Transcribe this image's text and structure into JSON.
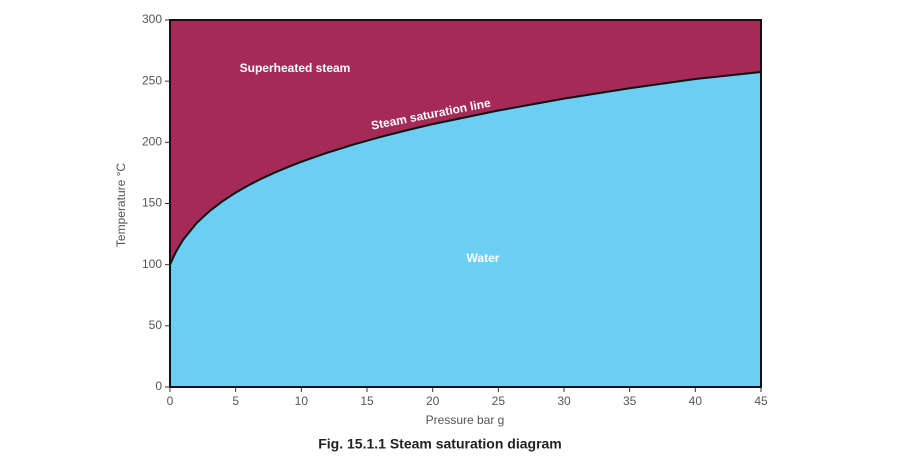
{
  "chart_data": {
    "type": "area",
    "title": "Fig. 15.1.1 Steam saturation diagram",
    "x_label": "Pressure bar g",
    "y_label": "Temperature °C",
    "x": [
      0,
      0.25,
      0.5,
      1,
      2,
      3,
      4,
      5,
      6,
      7,
      8,
      9,
      10,
      12,
      14,
      16,
      18,
      20,
      25,
      30,
      35,
      40,
      45
    ],
    "series": [
      {
        "name": "Steam saturation line",
        "color": "#111111",
        "values": [
          100,
          106,
          111.4,
          120.4,
          133.7,
          143.7,
          151.9,
          158.9,
          165.0,
          170.5,
          175.4,
          179.9,
          184.1,
          191.6,
          198.3,
          204.3,
          209.8,
          214.9,
          226.0,
          235.7,
          244.2,
          251.8,
          257.5
        ]
      }
    ],
    "below_color": "#6dcef4",
    "above_color": "#a52a57",
    "annotations": [
      "Superheated steam",
      "Water"
    ],
    "xlim": [
      0,
      45
    ],
    "xticks": [
      0,
      5,
      10,
      15,
      20,
      25,
      30,
      35,
      40,
      45
    ],
    "ylim": [
      0,
      300
    ],
    "yticks": [
      0,
      50,
      100,
      150,
      200,
      250,
      300
    ]
  }
}
